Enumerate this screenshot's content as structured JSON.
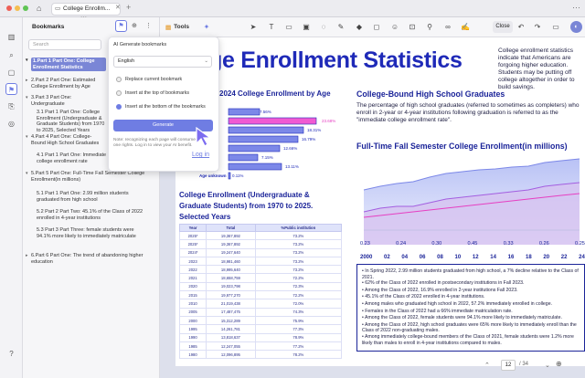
{
  "tab": {
    "title": "College Enrollm..."
  },
  "panel": {
    "title": "Bookmarks",
    "search_placeholder": "Search"
  },
  "bookmarks": [
    {
      "label": "1.Part 1 Part One: College Enrollment Statistics",
      "selected": true
    },
    {
      "label": "2.Part 2 Part One: Estimated College Enrollment by Age"
    },
    {
      "label": "3.Part 3 Part One: Undergraduate"
    },
    {
      "label": "3.1 Part 1 Part One: College Enrollment (Undergraduate & Graduate Students) from 1970 to 2025, Selected Years"
    },
    {
      "label": "4.Part 4 Part One: College-Bound High School Graduates"
    },
    {
      "label": "4.1 Part 1 Part One: Immediate college enrollment rate"
    },
    {
      "label": "5.Part 5 Part One: Full-Time Fall Semester College Enrollment(in millions)"
    },
    {
      "label": "5.1 Part 1 Part One: 2.99 million students graduated from high school"
    },
    {
      "label": "5.2 Part 2 Part Two: 45.1% of the Class of 2022 enrolled in 4-year institutions"
    },
    {
      "label": "5.3 Part 3 Part Three: female students were 94.1% more likely to immediately matriculate"
    },
    {
      "label": "6.Part 6 Part One: The trend of abandoning higher education"
    }
  ],
  "popup": {
    "title": "AI Generate bookmarks",
    "language": "English",
    "options": [
      "Replace current bookmark",
      "Insert at the top of bookmarks",
      "Insert at the bottom of the bookmarks"
    ],
    "generate": "Generate",
    "note": "Note: recognizing each page will consume one rights. Log in to view your AI benefit.",
    "login": "Log in"
  },
  "toolbar": {
    "tools": "Tools",
    "close": "Close"
  },
  "document": {
    "title": "ge Enrollment Statistics",
    "intro": "College enrollment statistics indicate that Americans are forgoing higher education. Students may be putting off college altogether in order to build savings.",
    "age_chart_title": "2024 College Enrollment by Age",
    "hsg_title": "College-Bound High School Graduates",
    "hsg_body": "The percentage of high school graduates (referred to sometimes as completers) who enroll in 2-year or 4-year institutions following graduation is referred to as the \"immediate college enrollment rate\".",
    "fte_title": "Full-Time Fall Semester College Enrollment(in millions)",
    "ce_title": "College Enrollment (Undergraduate & Graduate Students) from 1970 to 2025. Selected Years",
    "table_headers": [
      "Year",
      "Total",
      "%Public institution"
    ],
    "table_rows": [
      [
        "2025*",
        "19,367,892",
        "73.2%"
      ],
      [
        "2025*",
        "19,367,892",
        "73.2%"
      ],
      [
        "2024*",
        "19,247,640",
        "73.2%"
      ],
      [
        "2023",
        "18,981,460",
        "73.2%"
      ],
      [
        "2022",
        "18,995,640",
        "73.2%"
      ],
      [
        "2021",
        "18,658,759",
        "72.2%"
      ],
      [
        "2020",
        "19,023,798",
        "72.3%"
      ],
      [
        "2015",
        "19,977,270",
        "72.2%"
      ],
      [
        "2010",
        "21,019,438",
        "72.0%"
      ],
      [
        "2005",
        "17,487,475",
        "74.3%"
      ],
      [
        "2000",
        "15,312,289",
        "75.9%"
      ],
      [
        "1995",
        "14,261,781",
        "77.3%"
      ],
      [
        "1990",
        "13,818,637",
        "78.9%"
      ],
      [
        "1985",
        "12,247,055",
        "77.2%"
      ],
      [
        "1980",
        "12,096,895",
        "78.2%"
      ]
    ],
    "bullets": [
      "In Spring 2022, 2.99 million students graduated from high school, a 7% decline relative to the Class of 2021.",
      "62% of the Class of 2022 enrolled in postsecondary institutions in Fall 2023.",
      "Among the Class of 2022, 16.9% enrolled in 2-year institutions Fall 2023.",
      "45.1% of the Class of 2022 enrolled in 4-year institutions.",
      "Among males who graduated high school in 2022, 57.2% immediately enrolled in college.",
      "Females in the Class of 2022 had a 66% immediate matriculation rate.",
      "Among the Class of 2022, female students were 94.1% more likely to immediately matriculate.",
      "Among the Class of 2022, high school graduates were 65% more likely to immediately enroll than the Class of 2022 non-graduating males.",
      "Among immediately college-bound members of the Class of 2021, female students were 1.2% more likely than males to enroll in 4-year institutions compared to males."
    ],
    "line_x_labels": [
      "2000",
      "02",
      "04",
      "06",
      "08",
      "10",
      "12",
      "14",
      "16",
      "18",
      "20",
      "22",
      "24"
    ],
    "line_bottom_values": [
      "0.23",
      "0.24",
      "0.30",
      "0.45",
      "0.33",
      "0.26",
      "0.25"
    ],
    "age_values": [
      "7.56%",
      "23.68%",
      "18.31%",
      "16.79%",
      "12.66%",
      "7.15%",
      "13.11%",
      "0.11%"
    ],
    "age_last_label": "Age unknown",
    "page_current": "12",
    "page_total": "/ 34"
  },
  "colors": {
    "accent": "#6f7de3",
    "title_blue": "#1f2ab8",
    "selected_bm": "#7a86d6"
  }
}
